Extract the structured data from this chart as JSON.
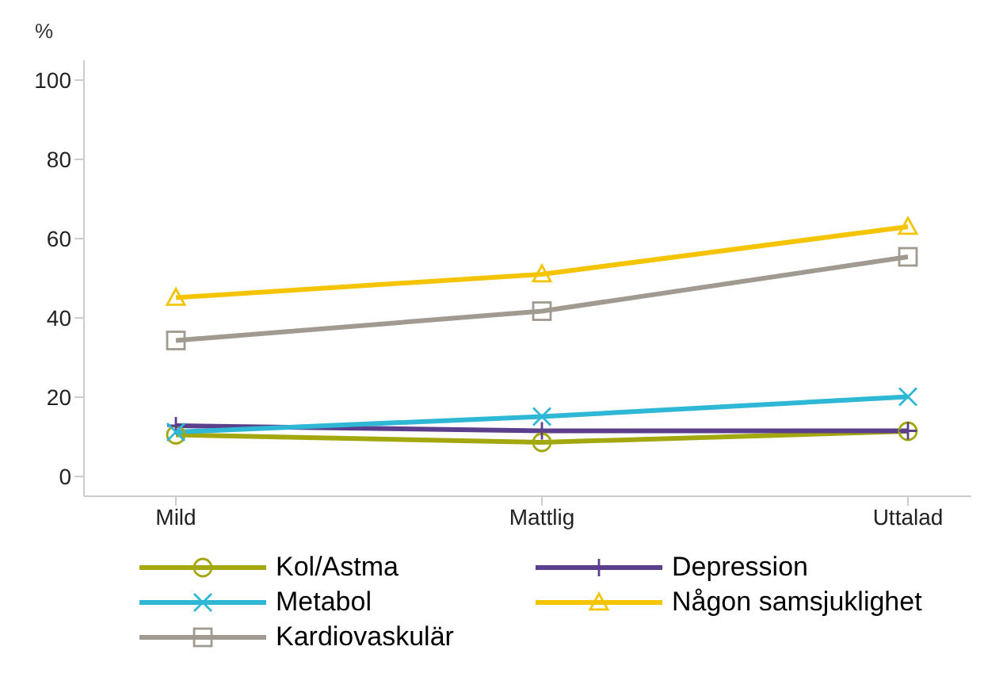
{
  "chart_data": {
    "type": "line",
    "ylabel": "%",
    "categories": [
      "Mild",
      "Mattlig",
      "Uttalad"
    ],
    "ylim": [
      -5,
      105
    ],
    "yticks": [
      0,
      20,
      40,
      60,
      80,
      100
    ],
    "grid": false,
    "legend": "bottom",
    "series": [
      {
        "name": "Kol/Astma",
        "color": "#a3a80f",
        "marker": "circle",
        "values": [
          10.5,
          8.6,
          11.4
        ]
      },
      {
        "name": "Depression",
        "color": "#5b3f8c",
        "marker": "plus",
        "values": [
          12.8,
          11.5,
          11.5
        ]
      },
      {
        "name": "Metabol",
        "color": "#2fb8d6",
        "marker": "cross",
        "values": [
          11.2,
          15.1,
          20.1
        ]
      },
      {
        "name": "Någon samsjuklighet",
        "color": "#f5c400",
        "marker": "triangle",
        "values": [
          45.1,
          51,
          63
        ]
      },
      {
        "name": "Kardiovaskulär",
        "color": "#a09a90",
        "marker": "square",
        "values": [
          34.3,
          41.7,
          55.4
        ]
      }
    ]
  }
}
